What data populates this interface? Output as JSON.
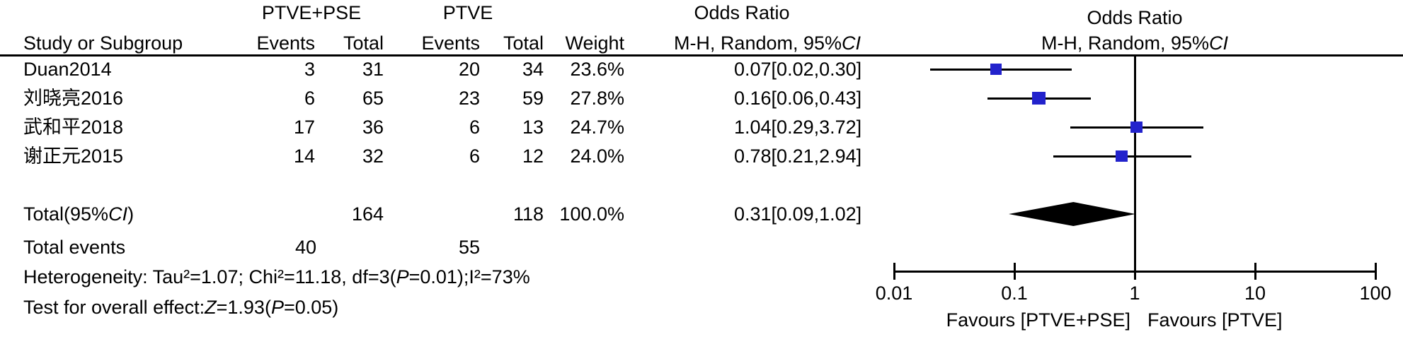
{
  "chart_data": {
    "type": "forest_plot",
    "title_left": "Odds Ratio",
    "title_right": "Odds Ratio",
    "group1_label": "PTVE+PSE",
    "group2_label": "PTVE",
    "col_headers": {
      "study": "Study or Subgroup",
      "events": "Events",
      "total": "Total",
      "weight": "Weight"
    },
    "method_parts": [
      {
        "t": "M-H, Random, 95%"
      },
      {
        "t": "CI",
        "i": true
      }
    ],
    "studies": [
      {
        "name": "Duan2014",
        "e1": "3",
        "t1": "31",
        "e2": "20",
        "t2": "34",
        "weight": "23.6%",
        "weight_val": 23.6,
        "or": 0.07,
        "lo": 0.02,
        "hi": 0.3,
        "or_text": "0.07[0.02,0.30]"
      },
      {
        "name": "刘晓亮2016",
        "e1": "6",
        "t1": "65",
        "e2": "23",
        "t2": "59",
        "weight": "27.8%",
        "weight_val": 27.8,
        "or": 0.16,
        "lo": 0.06,
        "hi": 0.43,
        "or_text": "0.16[0.06,0.43]"
      },
      {
        "name": "武和平2018",
        "e1": "17",
        "t1": "36",
        "e2": "6",
        "t2": "13",
        "weight": "24.7%",
        "weight_val": 24.7,
        "or": 1.04,
        "lo": 0.29,
        "hi": 3.72,
        "or_text": "1.04[0.29,3.72]"
      },
      {
        "name": "谢正元2015",
        "e1": "14",
        "t1": "32",
        "e2": "6",
        "t2": "12",
        "weight": "24.0%",
        "weight_val": 24.0,
        "or": 0.78,
        "lo": 0.21,
        "hi": 2.94,
        "or_text": "0.78[0.21,2.94]"
      }
    ],
    "total": {
      "label_parts": [
        {
          "t": "Total(95%"
        },
        {
          "t": "CI",
          "i": true
        },
        {
          "t": ")"
        }
      ],
      "t1": "164",
      "t2": "118",
      "weight": "100.0%",
      "or": 0.31,
      "lo": 0.09,
      "hi": 1.02,
      "or_text": "0.31[0.09,1.02]"
    },
    "total_events": {
      "label": "Total events",
      "e1": "40",
      "e2": "55"
    },
    "heterogeneity_parts": [
      {
        "t": "Heterogeneity: Tau²=1.07;  Chi²=11.18, df=3("
      },
      {
        "t": "P",
        "i": true
      },
      {
        "t": "=0.01);I²=73%"
      }
    ],
    "overall_effect_parts": [
      {
        "t": "Test for overall effect:"
      },
      {
        "t": "Z",
        "i": true
      },
      {
        "t": "=1.93("
      },
      {
        "t": "P",
        "i": true
      },
      {
        "t": "=0.05)"
      }
    ],
    "axis": {
      "scale": "log10",
      "tick_values": [
        0.01,
        0.1,
        1,
        10,
        100
      ],
      "tick_labels": [
        "0.01",
        "0.1",
        "1",
        "10",
        "100"
      ],
      "range": [
        0.01,
        100
      ],
      "reference_line": 1
    },
    "favours_left": "Favours [PTVE+PSE]",
    "favours_right": "Favours [PTVE]",
    "colors": {
      "square": "#2222cc",
      "diamond": "#000000",
      "line": "#000000",
      "text": "#000000"
    }
  }
}
